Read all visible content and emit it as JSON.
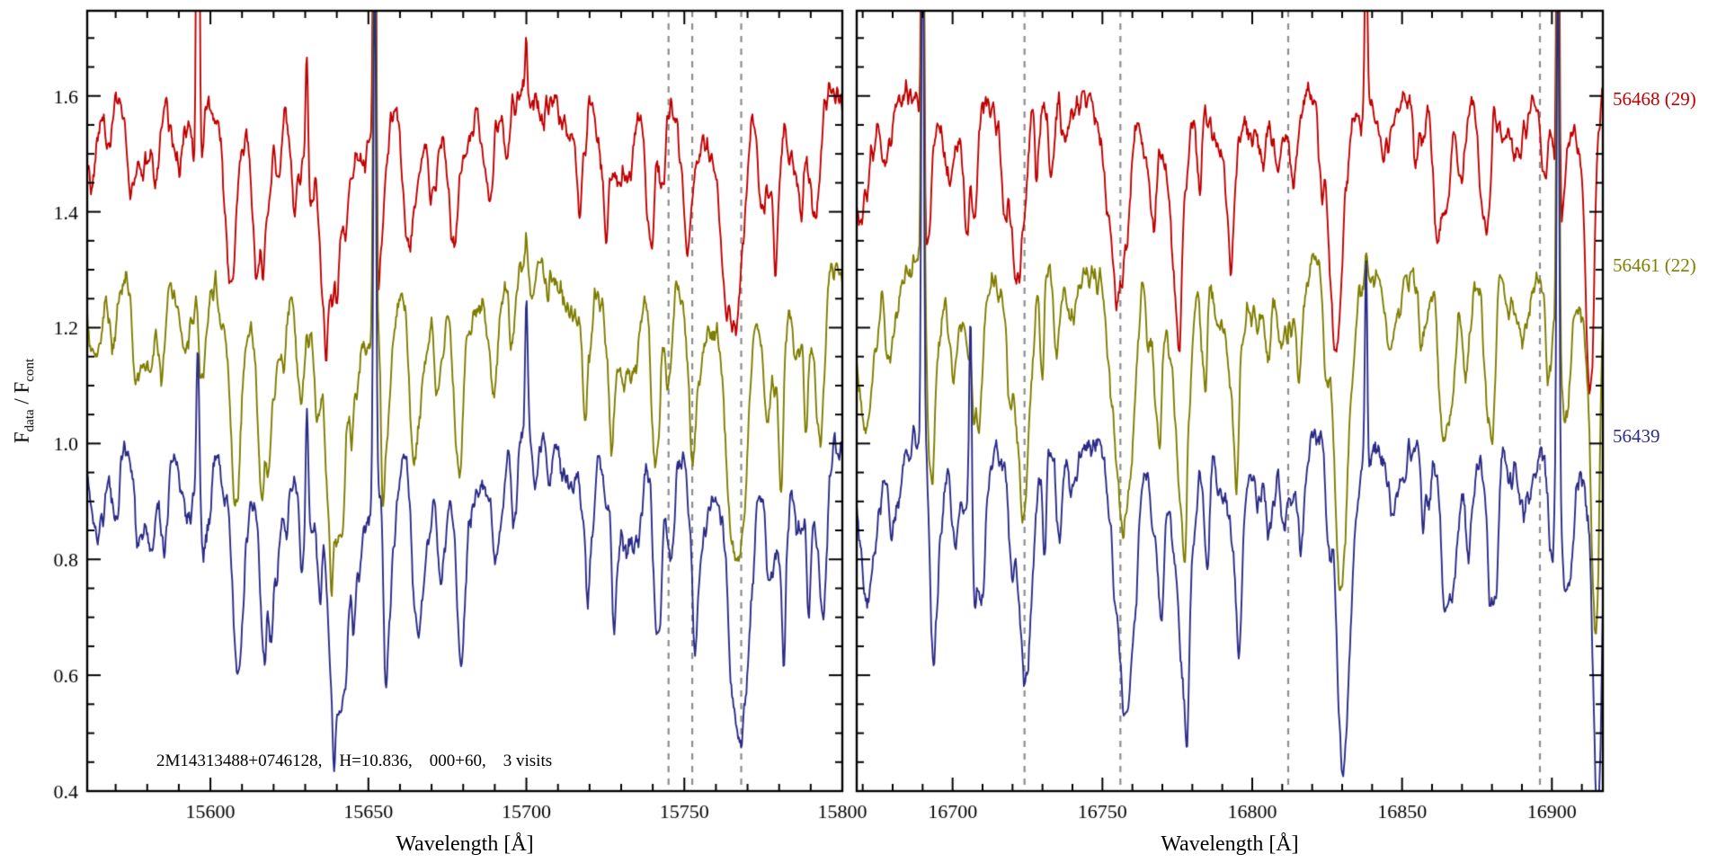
{
  "figure": {
    "background": "#ffffff",
    "axis_color": "#000000",
    "dashed_line_color": "#8d8d8d",
    "ylabel_parts": {
      "p1": "F",
      "sub1": "data",
      "p2": " / F",
      "sub2": "cont"
    },
    "xlabel_left": "Wavelength [Å]",
    "xlabel_right": "Wavelength [Å]",
    "annotation": "2M14313488+0746128,    H=10.836,    000+60,    3 visits",
    "series_labels": [
      {
        "text": "56468 (29)",
        "color": "#c00000"
      },
      {
        "text": "56461 (22)",
        "color": "#7e7e00"
      },
      {
        "text": "56439",
        "color": "#2b2b85"
      }
    ]
  },
  "chart_data": {
    "type": "line",
    "title": "",
    "xlabel": "Wavelength [Å]",
    "ylabel": "F_data / F_cont",
    "ylim": [
      0.4,
      1.747
    ],
    "yticks": [
      0.4,
      0.6,
      0.8,
      1.0,
      1.2,
      1.4,
      1.6
    ],
    "legend_position": "right-outside",
    "grid": false,
    "description": "Three continuum-normalized APOGEE visit spectra of 2M14313488+0746128, vertically offset, shown in two wavelength windows with dashed vertical reference lines.",
    "series": [
      {
        "name": "56468 (29)",
        "color": "#c00000",
        "offset": 1.6,
        "shift": -2.5,
        "depth_scale": 0.8
      },
      {
        "name": "56461 (22)",
        "color": "#7e7e00",
        "offset": 1.3,
        "shift": -0.8,
        "depth_scale": 1.0
      },
      {
        "name": "56439",
        "color": "#2b2b85",
        "offset": 1.0,
        "shift": 0.0,
        "depth_scale": 1.0
      }
    ],
    "panels": [
      {
        "xlim": [
          15561,
          15800
        ],
        "xticks": [
          15600,
          15650,
          15700,
          15750,
          15800
        ],
        "dashed_lines": [
          15745,
          15752.5,
          15768
        ],
        "absorption_lines": [
          {
            "x": 15570,
            "d": 0.12,
            "w": 1.0
          },
          {
            "x": 15577,
            "d": 0.1,
            "w": 0.9
          },
          {
            "x": 15585,
            "d": 0.08,
            "w": 1.0
          },
          {
            "x": 15604,
            "d": 0.07,
            "w": 1.1
          },
          {
            "x": 15613,
            "d": 0.06,
            "w": 1.0
          },
          {
            "x": 15621,
            "d": 0.1,
            "w": 1.2
          },
          {
            "x": 15631,
            "d": 0.11,
            "w": 1.0
          },
          {
            "x": 15645,
            "d": 0.08,
            "w": 1.0
          },
          {
            "x": 15665,
            "d": 0.1,
            "w": 1.3
          },
          {
            "x": 15673,
            "d": 0.07,
            "w": 1.0
          },
          {
            "x": 15680,
            "d": 0.07,
            "w": 1.0
          },
          {
            "x": 15719,
            "d": 0.1,
            "w": 1.5
          },
          {
            "x": 15726,
            "d": 0.08,
            "w": 1.2
          },
          {
            "x": 15734,
            "d": 0.09,
            "w": 1.3
          },
          {
            "x": 15741,
            "d": 0.08,
            "w": 1.3
          },
          {
            "x": 15745,
            "d": 0.11,
            "w": 1.3
          },
          {
            "x": 15752.5,
            "d": 0.14,
            "w": 1.7
          },
          {
            "x": 15768,
            "d": 0.27,
            "w": 3.0
          }
        ],
        "emission_spikes": [
          {
            "x": 15596,
            "amps": [
              1.0,
              0.05,
              0.25
            ]
          },
          {
            "x": 15630.5,
            "amps": [
              0.15,
              0.06,
              0.24
            ]
          },
          {
            "x": 15652,
            "amps": [
              1.0,
              1.0,
              1.0
            ]
          },
          {
            "x": 15700,
            "amps": [
              0.13,
              0.04,
              0.24
            ]
          }
        ]
      },
      {
        "xlim": [
          16668,
          16917
        ],
        "xticks": [
          16700,
          16750,
          16800,
          16850,
          16900
        ],
        "dashed_lines": [
          16724,
          16756,
          16812,
          16896
        ],
        "absorption_lines": [
          {
            "x": 16695,
            "d": 0.1,
            "w": 1.5
          },
          {
            "x": 16710,
            "d": 0.08,
            "w": 1.2
          },
          {
            "x": 16724,
            "d": 0.28,
            "w": 2.3
          },
          {
            "x": 16740,
            "d": 0.08,
            "w": 1.3
          },
          {
            "x": 16756,
            "d": 0.31,
            "w": 3.1
          },
          {
            "x": 16770,
            "d": 0.13,
            "w": 1.8
          },
          {
            "x": 16779,
            "d": 0.08,
            "w": 1.4
          },
          {
            "x": 16802,
            "d": 0.06,
            "w": 1.2
          },
          {
            "x": 16830,
            "d": 0.06,
            "w": 1.2
          },
          {
            "x": 16872,
            "d": 0.07,
            "w": 1.4
          },
          {
            "x": 16890,
            "d": 0.06,
            "w": 1.2
          }
        ],
        "emission_spikes": [
          {
            "x": 16690,
            "amps": [
              1.0,
              1.0,
              1.0
            ]
          },
          {
            "x": 16706,
            "amps": [
              0.06,
              0.12,
              0.4
            ]
          },
          {
            "x": 16838,
            "amps": [
              0.3,
              0.08,
              0.35
            ]
          },
          {
            "x": 16902,
            "amps": [
              1.0,
              1.0,
              1.0
            ]
          }
        ]
      }
    ]
  }
}
